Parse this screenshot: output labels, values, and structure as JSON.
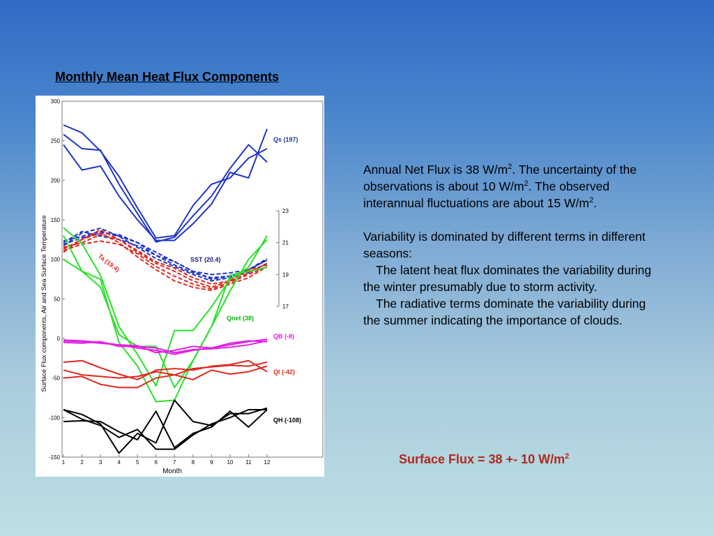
{
  "slide": {
    "chart_heading": "Monthly Mean Heat Flux Components",
    "para1_a": "Annual Net Flux is 38 W/m",
    "para1_b": ". The uncertainty of the observations is about 10 W/m",
    "para1_c": ". The observed interannual fluctuations are about 15 W/m",
    "para1_d": ".",
    "para2": "Variability is dominated by different terms in different seasons:",
    "para3": "The latent heat flux dominates the variability during the winter presumably due to storm activity.",
    "para4": "The radiative terms dominate the variability during the summer indicating the importance of clouds.",
    "superscript": "2",
    "summary_text": "Surface Flux = 38 +- 10 W/m",
    "summary_sup": "2"
  },
  "colors": {
    "Qs": "#1e34c8",
    "SST": "#1e34c8",
    "Ta": "#e0281e",
    "Qnet": "#28e028",
    "QB": "#e020e0",
    "Ql": "#e0281e",
    "QH": "#000000",
    "summary": "#b0281e"
  },
  "chart_data": {
    "type": "line",
    "title": "",
    "xlabel": "Month",
    "ylabel": "Surface Flux components, Air and Sea Surface Temperature",
    "x": [
      1,
      2,
      3,
      4,
      5,
      6,
      7,
      8,
      9,
      10,
      11,
      12
    ],
    "xticks": [
      "1",
      "2",
      "3",
      "4",
      "5",
      "6",
      "7",
      "8",
      "9",
      "10",
      "11",
      "12"
    ],
    "ylim": [
      -150,
      300
    ],
    "yticks": [
      "300",
      "250",
      "200",
      "150",
      "100",
      "50",
      "0",
      "-50",
      "-100",
      "-150"
    ],
    "y2lim": [
      17,
      23
    ],
    "y2ticks": [
      "23",
      "21",
      "19",
      "17"
    ],
    "labels": {
      "Qs": "Qs (197)",
      "SST": "SST (20.4)",
      "Ta": "Ta (19.4)",
      "Qnet": "Qnet (38)",
      "QB": "QB (-8)",
      "Ql": "Ql (-42)",
      "QH": "QH (-108)"
    },
    "series": [
      {
        "group": "Qs",
        "axis": "left",
        "dash": false,
        "values": [
          270,
          260,
          237,
          205,
          165,
          127,
          130,
          168,
          195,
          203,
          228,
          240
        ]
      },
      {
        "group": "Qs",
        "axis": "left",
        "dash": false,
        "values": [
          258,
          240,
          238,
          195,
          158,
          122,
          128,
          155,
          180,
          215,
          245,
          223
        ]
      },
      {
        "group": "Qs",
        "axis": "left",
        "dash": false,
        "values": [
          245,
          213,
          218,
          180,
          150,
          124,
          124,
          145,
          170,
          210,
          203,
          265
        ]
      },
      {
        "group": "SST",
        "axis": "right",
        "dash": true,
        "values": [
          20.8,
          21.6,
          21.9,
          21.4,
          20.7,
          20.0,
          19.5,
          19.0,
          18.6,
          18.8,
          19.3,
          19.9
        ]
      },
      {
        "group": "SST",
        "axis": "right",
        "dash": true,
        "values": [
          21.0,
          21.7,
          21.4,
          21.2,
          20.8,
          20.2,
          19.6,
          19.1,
          18.8,
          18.9,
          19.1,
          19.7
        ]
      },
      {
        "group": "SST",
        "axis": "right",
        "dash": true,
        "values": [
          20.9,
          21.3,
          21.6,
          21.5,
          21.0,
          20.2,
          19.8,
          19.2,
          18.7,
          18.9,
          19.3,
          20.0
        ]
      },
      {
        "group": "SST",
        "axis": "right",
        "dash": true,
        "values": [
          21.1,
          21.4,
          21.7,
          21.4,
          21.0,
          20.4,
          19.8,
          19.2,
          19.0,
          19.1,
          19.3,
          19.9
        ]
      },
      {
        "group": "Ta",
        "axis": "right",
        "dash": true,
        "values": [
          20.6,
          21.2,
          21.6,
          21.0,
          20.1,
          19.3,
          18.6,
          18.2,
          18.0,
          18.4,
          18.8,
          19.5
        ]
      },
      {
        "group": "Ta",
        "axis": "right",
        "dash": true,
        "values": [
          20.5,
          20.9,
          21.1,
          20.9,
          20.3,
          19.5,
          18.9,
          18.4,
          18.1,
          18.5,
          19.0,
          19.5
        ]
      },
      {
        "group": "Ta",
        "axis": "right",
        "dash": true,
        "values": [
          20.4,
          21.2,
          21.8,
          21.2,
          20.4,
          19.7,
          19.2,
          18.6,
          18.2,
          18.6,
          19.3,
          19.6
        ]
      },
      {
        "group": "Ta",
        "axis": "right",
        "dash": true,
        "values": [
          20.7,
          21.0,
          21.5,
          21.2,
          20.5,
          19.8,
          19.4,
          18.8,
          18.4,
          18.6,
          19.1,
          19.7
        ]
      },
      {
        "group": "Qnet",
        "axis": "left",
        "dash": false,
        "values": [
          140,
          120,
          80,
          15,
          -20,
          -60,
          10,
          10,
          40,
          75,
          90,
          130
        ]
      },
      {
        "group": "Qnet",
        "axis": "left",
        "dash": false,
        "values": [
          130,
          85,
          75,
          -5,
          -35,
          -80,
          -78,
          -28,
          15,
          80,
          85,
          90
        ]
      },
      {
        "group": "Qnet",
        "axis": "left",
        "dash": false,
        "values": [
          100,
          85,
          65,
          5,
          -10,
          -10,
          -62,
          -28,
          15,
          60,
          100,
          125
        ]
      },
      {
        "group": "QB",
        "axis": "left",
        "dash": false,
        "values": [
          -2,
          -3,
          -5,
          -8,
          -12,
          -15,
          -20,
          -15,
          -12,
          -8,
          -4,
          -1
        ]
      },
      {
        "group": "QB",
        "axis": "left",
        "dash": false,
        "values": [
          -5,
          -6,
          -4,
          -10,
          -10,
          -12,
          -18,
          -14,
          -13,
          -11,
          -8,
          -3
        ]
      },
      {
        "group": "QB",
        "axis": "left",
        "dash": false,
        "values": [
          -3,
          -4,
          -6,
          -8,
          -9,
          -18,
          -15,
          -10,
          -12,
          -6,
          -3,
          -4
        ]
      },
      {
        "group": "Ql",
        "axis": "left",
        "dash": false,
        "values": [
          -30,
          -28,
          -37,
          -45,
          -52,
          -40,
          -38,
          -40,
          -35,
          -33,
          -28,
          -42
        ]
      },
      {
        "group": "Ql",
        "axis": "left",
        "dash": false,
        "values": [
          -40,
          -46,
          -48,
          -50,
          -48,
          -42,
          -46,
          -38,
          -36,
          -34,
          -35,
          -30
        ]
      },
      {
        "group": "Ql",
        "axis": "left",
        "dash": false,
        "values": [
          -50,
          -48,
          -58,
          -62,
          -62,
          -50,
          -46,
          -52,
          -40,
          -45,
          -42,
          -35
        ]
      },
      {
        "group": "QH",
        "axis": "left",
        "dash": false,
        "values": [
          -90,
          -96,
          -108,
          -145,
          -120,
          -132,
          -78,
          -105,
          -110,
          -95,
          -95,
          -88
        ]
      },
      {
        "group": "QH",
        "axis": "left",
        "dash": false,
        "values": [
          -105,
          -104,
          -105,
          -118,
          -128,
          -92,
          -138,
          -120,
          -112,
          -92,
          -112,
          -90
        ]
      },
      {
        "group": "QH",
        "axis": "left",
        "dash": false,
        "values": [
          -90,
          -102,
          -110,
          -125,
          -115,
          -140,
          -140,
          -122,
          -108,
          -100,
          -90,
          -90
        ]
      }
    ]
  }
}
